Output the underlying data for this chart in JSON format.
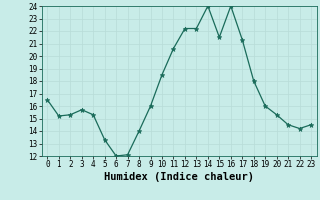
{
  "x": [
    0,
    1,
    2,
    3,
    4,
    5,
    6,
    7,
    8,
    9,
    10,
    11,
    12,
    13,
    14,
    15,
    16,
    17,
    18,
    19,
    20,
    21,
    22,
    23
  ],
  "y": [
    16.5,
    15.2,
    15.3,
    15.7,
    15.3,
    13.3,
    12.0,
    12.1,
    14.0,
    16.0,
    18.5,
    20.6,
    22.2,
    22.2,
    24.0,
    21.5,
    24.0,
    21.3,
    18.0,
    16.0,
    15.3,
    14.5,
    14.2,
    14.5
  ],
  "line_color": "#1a6b5a",
  "bg_color": "#c8ece8",
  "grid_color": "#b8dcd8",
  "xlabel": "Humidex (Indice chaleur)",
  "ylim": [
    12,
    24
  ],
  "xlim": [
    -0.5,
    23.5
  ],
  "yticks": [
    12,
    13,
    14,
    15,
    16,
    17,
    18,
    19,
    20,
    21,
    22,
    23,
    24
  ],
  "xticks": [
    0,
    1,
    2,
    3,
    4,
    5,
    6,
    7,
    8,
    9,
    10,
    11,
    12,
    13,
    14,
    15,
    16,
    17,
    18,
    19,
    20,
    21,
    22,
    23
  ],
  "xlabel_fontsize": 7.5,
  "tick_fontsize": 5.5,
  "marker_size": 3.5,
  "line_width": 0.9
}
